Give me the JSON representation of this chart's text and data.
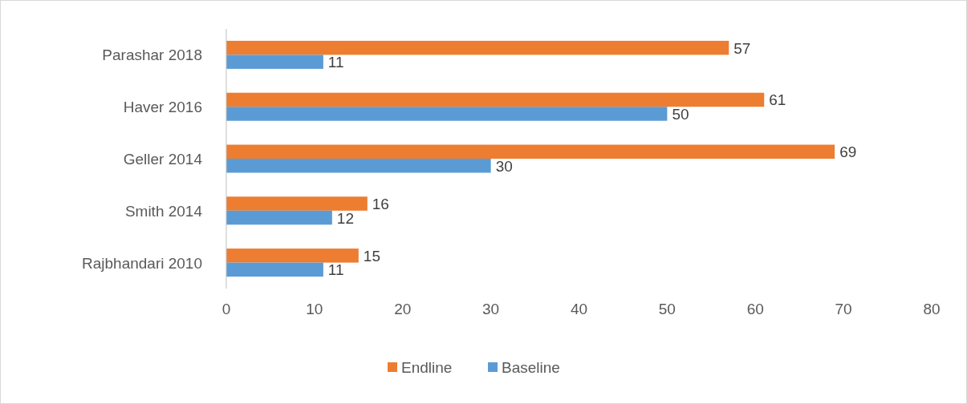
{
  "chart_data": {
    "type": "bar",
    "orientation": "horizontal",
    "categories": [
      "Parashar 2018",
      "Haver 2016",
      "Geller 2014",
      "Smith 2014",
      "Rajbhandari 2010"
    ],
    "series": [
      {
        "name": "Endline",
        "color": "#ed7d31",
        "values": [
          57,
          61,
          69,
          16,
          15
        ]
      },
      {
        "name": "Baseline",
        "color": "#5b9bd5",
        "values": [
          11,
          50,
          30,
          12,
          11
        ]
      }
    ],
    "xlim": [
      0,
      80
    ],
    "xticks": [
      0,
      10,
      20,
      30,
      40,
      50,
      60,
      70,
      80
    ],
    "data_labels": true,
    "legend": "bottom",
    "grid": false
  }
}
